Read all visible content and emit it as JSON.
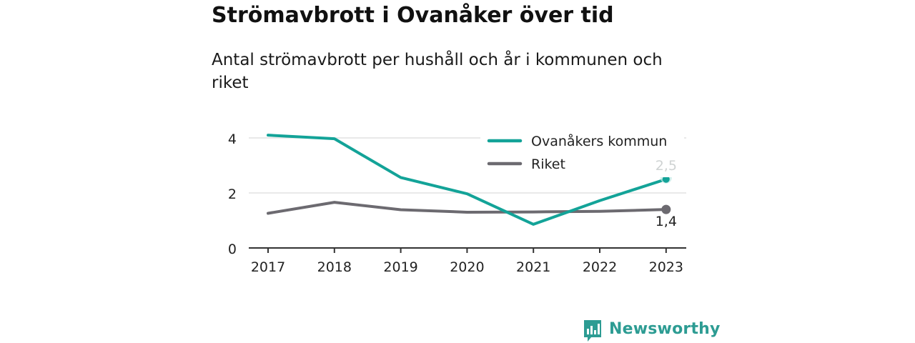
{
  "header": {
    "title": "Strömavbrott i Ovanåker över tid",
    "subtitle": "Antal strömavbrott per hushåll och år i kommunen och riket"
  },
  "brand": {
    "name": "Newsworthy",
    "color": "#2d9c93"
  },
  "chart_data": {
    "type": "line",
    "x": [
      "2017",
      "2018",
      "2019",
      "2020",
      "2021",
      "2022",
      "2023"
    ],
    "series": [
      {
        "name": "Ovanåkers kommun",
        "color": "#13a398",
        "values": [
          4.1,
          3.97,
          2.56,
          1.97,
          0.86,
          1.72,
          2.5
        ],
        "end_label": "2,5"
      },
      {
        "name": "Riket",
        "color": "#6c6a70",
        "values": [
          1.26,
          1.66,
          1.39,
          1.3,
          1.31,
          1.33,
          1.4
        ],
        "end_label": "1,4"
      }
    ],
    "yticks": [
      "0",
      "2",
      "4"
    ],
    "ylim": [
      0,
      4.6
    ],
    "grid": true,
    "legend_position": "top-right"
  }
}
